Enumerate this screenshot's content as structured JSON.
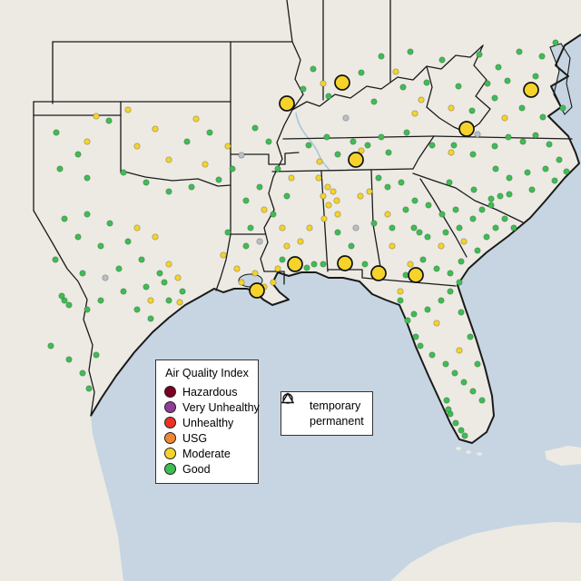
{
  "map": {
    "water_color": "#c6d5e1",
    "land_color": "#eceae3",
    "border_color": "#1a1a1a"
  },
  "aqi_legend": {
    "title": "Air Quality Index",
    "items": [
      {
        "label": "Hazardous",
        "color": "#7e0023"
      },
      {
        "label": "Very Unhealthy",
        "color": "#8f3f97"
      },
      {
        "label": "Unhealthy",
        "color": "#ed3124"
      },
      {
        "label": "USG",
        "color": "#ef8733"
      },
      {
        "label": "Moderate",
        "color": "#f5d32a"
      },
      {
        "label": "Good",
        "color": "#3dbd53"
      }
    ]
  },
  "shape_legend": {
    "items": [
      {
        "symbol": "circle",
        "label": "temporary"
      },
      {
        "symbol": "triangle",
        "label": "permanent"
      }
    ]
  },
  "stations": {
    "colors": {
      "g": "#3dbd53",
      "m": "#f5d32a",
      "n": "#b9bfc4"
    },
    "small": [
      [
        345,
        76,
        "g"
      ],
      [
        398,
        80,
        "g"
      ],
      [
        420,
        62,
        "g"
      ],
      [
        452,
        57,
        "g"
      ],
      [
        487,
        66,
        "g"
      ],
      [
        528,
        60,
        "g"
      ],
      [
        549,
        74,
        "g"
      ],
      [
        572,
        57,
        "g"
      ],
      [
        597,
        62,
        "g"
      ],
      [
        612,
        47,
        "g"
      ],
      [
        334,
        98,
        "g"
      ],
      [
        362,
        106,
        "g"
      ],
      [
        412,
        112,
        "g"
      ],
      [
        444,
        96,
        "g"
      ],
      [
        470,
        91,
        "g"
      ],
      [
        505,
        95,
        "g"
      ],
      [
        537,
        92,
        "g"
      ],
      [
        559,
        89,
        "g"
      ],
      [
        590,
        84,
        "g"
      ],
      [
        575,
        119,
        "g"
      ],
      [
        598,
        129,
        "g"
      ],
      [
        620,
        119,
        "g"
      ],
      [
        545,
        108,
        "g"
      ],
      [
        520,
        122,
        "g"
      ],
      [
        500,
        160,
        "g"
      ],
      [
        521,
        170,
        "g"
      ],
      [
        545,
        161,
        "g"
      ],
      [
        560,
        151,
        "g"
      ],
      [
        576,
        156,
        "g"
      ],
      [
        590,
        149,
        "g"
      ],
      [
        605,
        159,
        "g"
      ],
      [
        546,
        186,
        "g"
      ],
      [
        561,
        196,
        "g"
      ],
      [
        581,
        190,
        "g"
      ],
      [
        601,
        186,
        "g"
      ],
      [
        616,
        176,
        "g"
      ],
      [
        522,
        209,
        "g"
      ],
      [
        541,
        219,
        "g"
      ],
      [
        561,
        214,
        "g"
      ],
      [
        586,
        209,
        "g"
      ],
      [
        611,
        199,
        "g"
      ],
      [
        624,
        189,
        "g"
      ],
      [
        495,
        201,
        "g"
      ],
      [
        476,
        160,
        "g"
      ],
      [
        360,
        151,
        "g"
      ],
      [
        389,
        156,
        "g"
      ],
      [
        420,
        151,
        "g"
      ],
      [
        448,
        146,
        "g"
      ],
      [
        405,
        160,
        "g"
      ],
      [
        340,
        160,
        "g"
      ],
      [
        372,
        170,
        "g"
      ],
      [
        428,
        168,
        "g"
      ],
      [
        62,
        146,
        "g"
      ],
      [
        86,
        170,
        "g"
      ],
      [
        120,
        133,
        "g"
      ],
      [
        66,
        186,
        "g"
      ],
      [
        96,
        196,
        "g"
      ],
      [
        136,
        190,
        "g"
      ],
      [
        161,
        201,
        "g"
      ],
      [
        186,
        211,
        "g"
      ],
      [
        211,
        206,
        "g"
      ],
      [
        241,
        198,
        "g"
      ],
      [
        256,
        186,
        "g"
      ],
      [
        231,
        146,
        "g"
      ],
      [
        206,
        156,
        "g"
      ],
      [
        281,
        141,
        "g"
      ],
      [
        296,
        156,
        "g"
      ],
      [
        306,
        186,
        "g"
      ],
      [
        286,
        206,
        "g"
      ],
      [
        271,
        221,
        "g"
      ],
      [
        301,
        236,
        "g"
      ],
      [
        316,
        216,
        "g"
      ],
      [
        276,
        251,
        "g"
      ],
      [
        71,
        241,
        "g"
      ],
      [
        96,
        236,
        "g"
      ],
      [
        121,
        246,
        "g"
      ],
      [
        86,
        261,
        "g"
      ],
      [
        111,
        271,
        "g"
      ],
      [
        141,
        266,
        "g"
      ],
      [
        61,
        286,
        "g"
      ],
      [
        91,
        301,
        "g"
      ],
      [
        131,
        296,
        "g"
      ],
      [
        156,
        286,
        "g"
      ],
      [
        176,
        301,
        "g"
      ],
      [
        71,
        331,
        "g"
      ],
      [
        76,
        336,
        "g"
      ],
      [
        96,
        341,
        "g"
      ],
      [
        111,
        331,
        "g"
      ],
      [
        136,
        321,
        "g"
      ],
      [
        161,
        316,
        "g"
      ],
      [
        181,
        311,
        "g"
      ],
      [
        56,
        381,
        "g"
      ],
      [
        76,
        396,
        "g"
      ],
      [
        91,
        411,
        "g"
      ],
      [
        106,
        391,
        "g"
      ],
      [
        151,
        341,
        "g"
      ],
      [
        166,
        351,
        "g"
      ],
      [
        186,
        331,
        "g"
      ],
      [
        201,
        321,
        "g"
      ],
      [
        68,
        326,
        "g"
      ],
      [
        98,
        428,
        "g"
      ],
      [
        251,
        256,
        "g"
      ],
      [
        271,
        271,
        "g"
      ],
      [
        311,
        286,
        "g"
      ],
      [
        346,
        291,
        "g"
      ],
      [
        338,
        295,
        "g"
      ],
      [
        356,
        291,
        "g"
      ],
      [
        372,
        256,
        "g"
      ],
      [
        387,
        271,
        "g"
      ],
      [
        402,
        291,
        "g"
      ],
      [
        412,
        246,
        "g"
      ],
      [
        432,
        251,
        "g"
      ],
      [
        462,
        256,
        "g"
      ],
      [
        447,
        231,
        "g"
      ],
      [
        457,
        221,
        "g"
      ],
      [
        472,
        226,
        "g"
      ],
      [
        487,
        236,
        "g"
      ],
      [
        502,
        231,
        "g"
      ],
      [
        417,
        196,
        "g"
      ],
      [
        442,
        201,
        "g"
      ],
      [
        427,
        206,
        "g"
      ],
      [
        456,
        251,
        "g"
      ],
      [
        471,
        261,
        "g"
      ],
      [
        491,
        256,
        "g"
      ],
      [
        506,
        251,
        "g"
      ],
      [
        521,
        241,
        "g"
      ],
      [
        531,
        231,
        "g"
      ],
      [
        466,
        286,
        "g"
      ],
      [
        481,
        296,
        "g"
      ],
      [
        496,
        301,
        "g"
      ],
      [
        447,
        303,
        "g"
      ],
      [
        508,
        288,
        "g"
      ],
      [
        526,
        276,
        "g"
      ],
      [
        536,
        261,
        "g"
      ],
      [
        546,
        251,
        "g"
      ],
      [
        556,
        241,
        "g"
      ],
      [
        566,
        251,
        "g"
      ],
      [
        541,
        226,
        "g"
      ],
      [
        551,
        216,
        "g"
      ],
      [
        441,
        331,
        "g"
      ],
      [
        456,
        346,
        "g"
      ],
      [
        471,
        341,
        "g"
      ],
      [
        486,
        331,
        "g"
      ],
      [
        496,
        321,
        "g"
      ],
      [
        506,
        311,
        "g"
      ],
      [
        458,
        371,
        "g"
      ],
      [
        463,
        381,
        "g"
      ],
      [
        476,
        391,
        "g"
      ],
      [
        491,
        401,
        "g"
      ],
      [
        501,
        411,
        "g"
      ],
      [
        511,
        421,
        "g"
      ],
      [
        521,
        431,
        "g"
      ],
      [
        531,
        441,
        "g"
      ],
      [
        492,
        441,
        "g"
      ],
      [
        496,
        456,
        "g"
      ],
      [
        502,
        466,
        "g"
      ],
      [
        508,
        474,
        "g"
      ],
      [
        512,
        480,
        "g"
      ],
      [
        494,
        451,
        "g"
      ],
      [
        449,
        353,
        "g"
      ],
      [
        508,
        344,
        "g"
      ],
      [
        518,
        371,
        "g"
      ],
      [
        526,
        401,
        "g"
      ],
      [
        356,
        92,
        "m"
      ],
      [
        436,
        79,
        "m"
      ],
      [
        464,
        110,
        "m"
      ],
      [
        497,
        119,
        "m"
      ],
      [
        457,
        125,
        "m"
      ],
      [
        556,
        130,
        "m"
      ],
      [
        497,
        168,
        "m"
      ],
      [
        398,
        166,
        "m"
      ],
      [
        352,
        178,
        "m"
      ],
      [
        106,
        128,
        "m"
      ],
      [
        141,
        121,
        "m"
      ],
      [
        216,
        131,
        "m"
      ],
      [
        96,
        156,
        "m"
      ],
      [
        151,
        161,
        "m"
      ],
      [
        226,
        181,
        "m"
      ],
      [
        186,
        176,
        "m"
      ],
      [
        251,
        161,
        "m"
      ],
      [
        171,
        142,
        "m"
      ],
      [
        321,
        196,
        "m"
      ],
      [
        291,
        231,
        "m"
      ],
      [
        311,
        251,
        "m"
      ],
      [
        151,
        251,
        "m"
      ],
      [
        171,
        261,
        "m"
      ],
      [
        186,
        291,
        "m"
      ],
      [
        166,
        331,
        "m"
      ],
      [
        196,
        306,
        "m"
      ],
      [
        198,
        333,
        "m"
      ],
      [
        246,
        281,
        "m"
      ],
      [
        261,
        296,
        "m"
      ],
      [
        281,
        301,
        "m"
      ],
      [
        301,
        311,
        "m"
      ],
      [
        316,
        271,
        "m"
      ],
      [
        331,
        266,
        "m"
      ],
      [
        341,
        251,
        "m"
      ],
      [
        356,
        216,
        "m"
      ],
      [
        361,
        206,
        "m"
      ],
      [
        351,
        196,
        "m"
      ],
      [
        371,
        221,
        "m"
      ],
      [
        266,
        311,
        "m"
      ],
      [
        291,
        316,
        "m"
      ],
      [
        306,
        296,
        "m"
      ],
      [
        362,
        226,
        "m"
      ],
      [
        372,
        236,
        "m"
      ],
      [
        357,
        241,
        "m"
      ],
      [
        367,
        211,
        "m"
      ],
      [
        397,
        216,
        "m"
      ],
      [
        407,
        211,
        "m"
      ],
      [
        427,
        236,
        "m"
      ],
      [
        432,
        271,
        "m"
      ],
      [
        452,
        291,
        "m"
      ],
      [
        511,
        266,
        "m"
      ],
      [
        486,
        271,
        "m"
      ],
      [
        481,
        356,
        "m"
      ],
      [
        441,
        321,
        "m"
      ],
      [
        506,
        386,
        "m"
      ],
      [
        381,
        130,
        "n"
      ],
      [
        526,
        148,
        "n"
      ],
      [
        266,
        171,
        "n"
      ],
      [
        286,
        266,
        "n"
      ],
      [
        392,
        251,
        "n"
      ],
      [
        116,
        306,
        "n"
      ]
    ],
    "large": [
      [
        316,
        114,
        "m"
      ],
      [
        377,
        91,
        "m"
      ],
      [
        585,
        99,
        "m"
      ],
      [
        514,
        142,
        "m"
      ],
      [
        392,
        176,
        "m"
      ],
      [
        283,
        320,
        "m"
      ],
      [
        325,
        291,
        "m"
      ],
      [
        380,
        290,
        "m"
      ],
      [
        417,
        301,
        "m"
      ],
      [
        458,
        303,
        "m"
      ]
    ]
  }
}
